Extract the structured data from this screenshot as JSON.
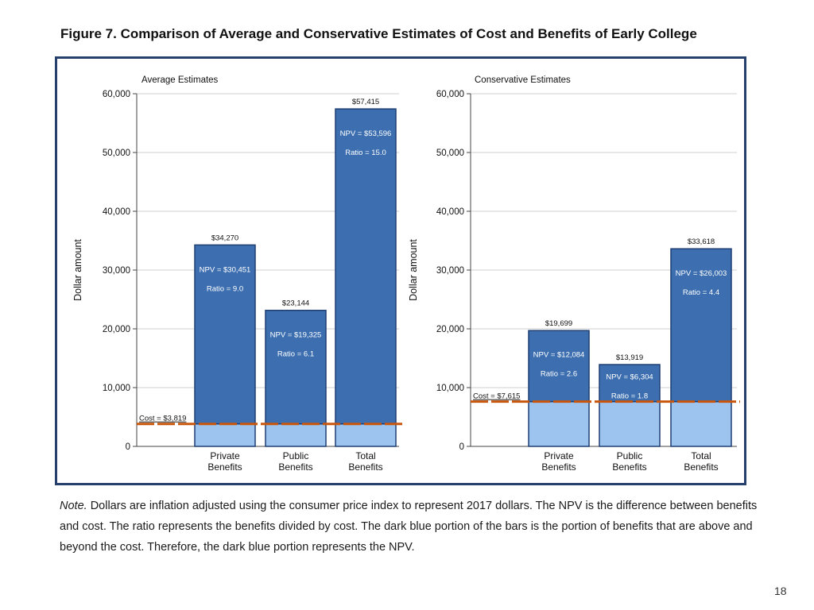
{
  "page": {
    "figure_title": "Figure 7. Comparison of Average and Conservative Estimates of Cost and Benefits of Early College",
    "note_label": "Note.",
    "note_text": " Dollars are inflation adjusted using the consumer price index to represent 2017 dollars. The NPV is the difference between benefits and cost. The ratio represents the benefits divided by cost. The dark blue portion of the bars is the portion of benefits that are above and beyond the cost. Therefore, the dark blue portion represents the NPV.",
    "page_number": "18"
  },
  "colors": {
    "npv_bar": "#3d6fb0",
    "cost_bar": "#9dc3ef",
    "bar_outline": "#1f3f73",
    "cost_line": "#c8560c",
    "grid": "#cfcfcf",
    "axis": "#444444",
    "frame": "#24406b"
  },
  "chart_data": [
    {
      "type": "bar",
      "stacked": true,
      "title": "Average Estimates",
      "ylabel": "Dollar amount",
      "ylim": [
        0,
        60000
      ],
      "yticks": [
        0,
        10000,
        20000,
        30000,
        40000,
        50000,
        60000
      ],
      "ytick_labels": [
        "0",
        "10,000",
        "20,000",
        "30,000",
        "40,000",
        "50,000",
        "60,000"
      ],
      "categories": [
        [
          "Private",
          "Benefits"
        ],
        [
          "Public",
          "Benefits"
        ],
        [
          "Total",
          "Benefits"
        ]
      ],
      "cost": 3819,
      "cost_label": "Cost = $3,819",
      "totals": [
        34270,
        23144,
        57415
      ],
      "total_labels": [
        "$34,270",
        "$23,144",
        "$57,415"
      ],
      "npv": [
        30451,
        19325,
        53596
      ],
      "npv_labels": [
        "NPV = $30,451",
        "NPV = $19,325",
        "NPV = $53,596"
      ],
      "ratio_labels": [
        "Ratio = 9.0",
        "Ratio = 6.1",
        "Ratio = 15.0"
      ],
      "series": [
        {
          "name": "Cost portion",
          "values": [
            3819,
            3819,
            3819
          ]
        },
        {
          "name": "NPV portion",
          "values": [
            30451,
            19325,
            53596
          ]
        }
      ]
    },
    {
      "type": "bar",
      "stacked": true,
      "title": "Conservative Estimates",
      "ylabel": "Dollar amount",
      "ylim": [
        0,
        60000
      ],
      "yticks": [
        0,
        10000,
        20000,
        30000,
        40000,
        50000,
        60000
      ],
      "ytick_labels": [
        "0",
        "10,000",
        "20,000",
        "30,000",
        "40,000",
        "50,000",
        "60,000"
      ],
      "categories": [
        [
          "Private",
          "Benefits"
        ],
        [
          "Public",
          "Benefits"
        ],
        [
          "Total",
          "Benefits"
        ]
      ],
      "cost": 7615,
      "cost_label": "Cost = $7,615",
      "totals": [
        19699,
        13919,
        33618
      ],
      "total_labels": [
        "$19,699",
        "$13,919",
        "$33,618"
      ],
      "npv": [
        12084,
        6304,
        26003
      ],
      "npv_labels": [
        "NPV = $12,084",
        "NPV = $6,304",
        "NPV = $26,003"
      ],
      "ratio_labels": [
        "Ratio = 2.6",
        "Ratio = 1.8",
        "Ratio = 4.4"
      ],
      "series": [
        {
          "name": "Cost portion",
          "values": [
            7615,
            7615,
            7615
          ]
        },
        {
          "name": "NPV portion",
          "values": [
            12084,
            6304,
            26003
          ]
        }
      ]
    }
  ]
}
